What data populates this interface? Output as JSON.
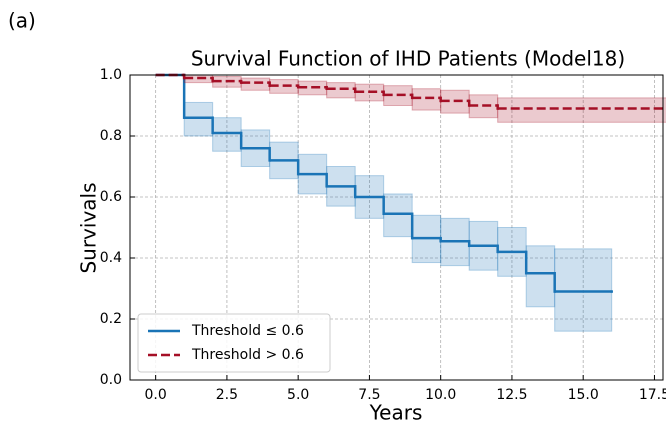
{
  "panel_label": "(a)",
  "chart_data": {
    "type": "step",
    "title": "Survival Function of IHD Patients (Model18)",
    "x_label": "Years",
    "y_label": "Survivals",
    "xlim": [
      -0.9,
      17.8
    ],
    "ylim": [
      0,
      1
    ],
    "xticks": [
      {
        "value": 0,
        "label": "0.0"
      },
      {
        "value": 2.5,
        "label": "2.5"
      },
      {
        "value": 5,
        "label": "5.0"
      },
      {
        "value": 7.5,
        "label": "7.5"
      },
      {
        "value": 10,
        "label": "10.0"
      },
      {
        "value": 12.5,
        "label": "12.5"
      },
      {
        "value": 15,
        "label": "15.0"
      },
      {
        "value": 17.5,
        "label": "17.5"
      }
    ],
    "yticks": [
      {
        "value": 0,
        "label": "0.0"
      },
      {
        "value": 0.2,
        "label": "0.2"
      },
      {
        "value": 0.4,
        "label": "0.4"
      },
      {
        "value": 0.6,
        "label": "0.6"
      },
      {
        "value": 0.8,
        "label": "0.8"
      },
      {
        "value": 1,
        "label": "1.0"
      }
    ],
    "grid": true,
    "legend": "lower left",
    "series": [
      {
        "name": "Threshold ≤ 0.6",
        "color": "#1a74b6",
        "dash": false,
        "x": [
          0,
          1,
          2,
          3,
          4,
          5,
          6,
          7,
          8,
          9,
          10,
          11,
          12,
          13,
          14,
          16
        ],
        "values": [
          1.0,
          0.86,
          0.81,
          0.76,
          0.72,
          0.675,
          0.635,
          0.6,
          0.545,
          0.465,
          0.455,
          0.44,
          0.42,
          0.35,
          0.29,
          0.29
        ],
        "ci_upper": [
          1.0,
          0.91,
          0.86,
          0.82,
          0.78,
          0.74,
          0.7,
          0.67,
          0.61,
          0.54,
          0.53,
          0.52,
          0.5,
          0.44,
          0.43,
          0.43
        ],
        "ci_lower": [
          1.0,
          0.8,
          0.75,
          0.7,
          0.66,
          0.61,
          0.57,
          0.53,
          0.47,
          0.385,
          0.375,
          0.36,
          0.34,
          0.24,
          0.16,
          0.16
        ]
      },
      {
        "name": "Threshold > 0.6",
        "color": "#a50f26",
        "dash": true,
        "x": [
          0,
          1,
          2,
          3,
          4,
          5,
          6,
          7,
          8,
          9,
          10,
          11,
          12,
          18
        ],
        "values": [
          1.0,
          0.99,
          0.98,
          0.975,
          0.965,
          0.96,
          0.955,
          0.945,
          0.935,
          0.925,
          0.915,
          0.9,
          0.89,
          0.89
        ],
        "ci_upper": [
          1.0,
          1.0,
          0.995,
          0.99,
          0.985,
          0.98,
          0.975,
          0.97,
          0.965,
          0.955,
          0.95,
          0.935,
          0.925,
          0.925
        ],
        "ci_lower": [
          1.0,
          0.975,
          0.96,
          0.95,
          0.94,
          0.935,
          0.925,
          0.915,
          0.9,
          0.885,
          0.875,
          0.86,
          0.845,
          0.845
        ]
      }
    ]
  }
}
